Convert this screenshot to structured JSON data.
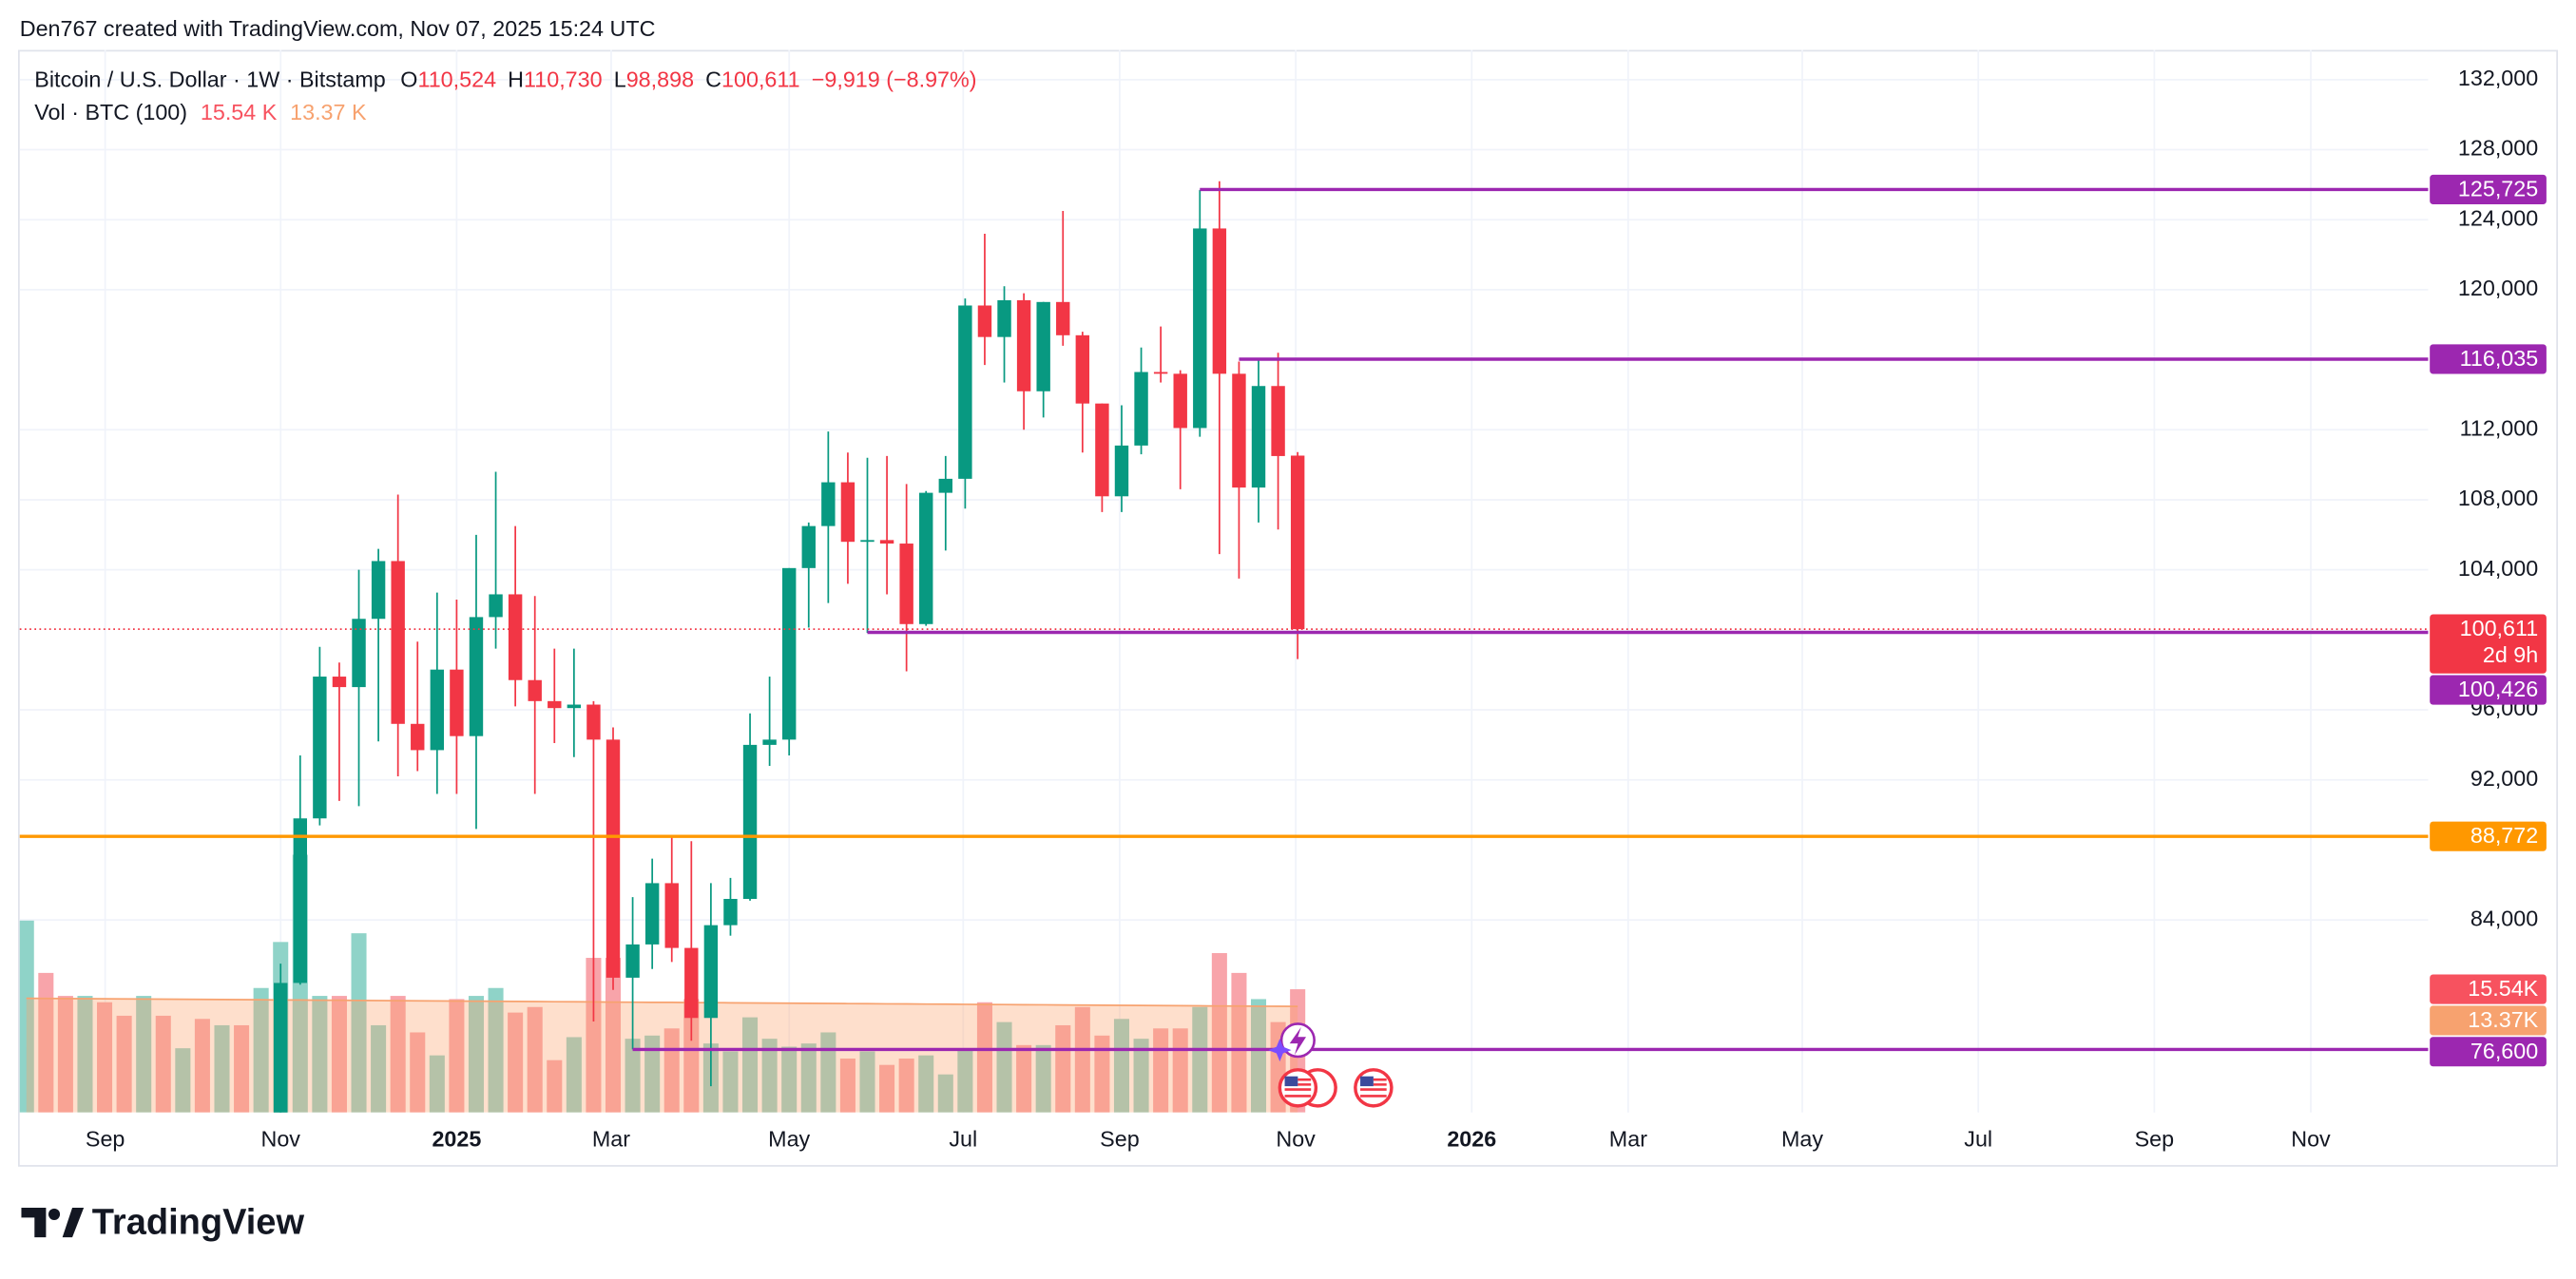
{
  "header": {
    "credit": "Den767 created with TradingView.com, Nov 07, 2025 15:24 UTC",
    "logo": "TradingView"
  },
  "legend": {
    "symbol": "Bitcoin / U.S. Dollar · 1W · Bitstamp",
    "ohlc": [
      {
        "key": "O",
        "value": "110,524"
      },
      {
        "key": "H",
        "value": "110,730"
      },
      {
        "key": "L",
        "value": "98,898"
      },
      {
        "key": "C",
        "value": "100,611"
      }
    ],
    "change": "−9,919 (−8.97%)",
    "volume": "Vol · BTC (100)",
    "volume_value": "15.54 K",
    "volume_ma_value": "13.37 K"
  },
  "chart_data": {
    "type": "candlestick",
    "up_color": "#089981",
    "down_color": "#f23645",
    "xlim": [
      -0.34,
      122.8
    ],
    "xticks": [
      {
        "value": 4.03,
        "label": "Sep"
      },
      {
        "value": 13.0,
        "label": "Nov"
      },
      {
        "value": 22.0,
        "label": "2025",
        "bold": true
      },
      {
        "value": 29.9,
        "label": "Mar"
      },
      {
        "value": 39.0,
        "label": "May"
      },
      {
        "value": 47.9,
        "label": "Jul"
      },
      {
        "value": 55.9,
        "label": "Sep"
      },
      {
        "value": 64.9,
        "label": "Nov"
      },
      {
        "value": 73.9,
        "label": "2026",
        "bold": true
      },
      {
        "value": 81.9,
        "label": "Mar"
      },
      {
        "value": 90.8,
        "label": "May"
      },
      {
        "value": 99.8,
        "label": "Jul"
      },
      {
        "value": 108.8,
        "label": "Sep"
      },
      {
        "value": 116.8,
        "label": "Nov"
      }
    ],
    "ylim": [
      73000,
      133700
    ],
    "yticks": [
      {
        "value": 84000,
        "label": "84,000"
      },
      {
        "value": 92000,
        "label": "92,000"
      },
      {
        "value": 96000,
        "label": "96,000"
      },
      {
        "value": 104000,
        "label": "104,000"
      },
      {
        "value": 108000,
        "label": "108,000"
      },
      {
        "value": 112000,
        "label": "112,000"
      },
      {
        "value": 120000,
        "label": "120,000"
      },
      {
        "value": 124000,
        "label": "124,000"
      },
      {
        "value": 128000,
        "label": "128,000"
      },
      {
        "value": 132000,
        "label": "132,000"
      }
    ],
    "grid": true,
    "open": [
      null,
      null,
      null,
      null,
      null,
      null,
      null,
      null,
      null,
      null,
      null,
      null,
      null,
      68700,
      80400,
      89800,
      97900,
      97300,
      101200,
      104500,
      95200,
      93700,
      98300,
      94500,
      101300,
      102600,
      97700,
      96500,
      96100,
      96300,
      94300,
      80700,
      82600,
      86100,
      82400,
      78400,
      83700,
      85200,
      94000,
      94300,
      104100,
      106500,
      109000,
      105600,
      105700,
      105500,
      100900,
      108400,
      109200,
      119100,
      117300,
      119400,
      114200,
      119300,
      117400,
      113500,
      108200,
      111100,
      115300,
      115200,
      112100,
      123500,
      115200,
      108700,
      114500,
      110524
    ],
    "high": [
      null,
      null,
      null,
      null,
      null,
      null,
      null,
      null,
      null,
      null,
      null,
      null,
      null,
      81500,
      93400,
      99600,
      98700,
      104000,
      105200,
      108300,
      99900,
      102700,
      102300,
      106000,
      109600,
      106500,
      102500,
      99500,
      99500,
      96500,
      95000,
      85300,
      87500,
      88800,
      88500,
      86100,
      86400,
      95800,
      97900,
      104100,
      106700,
      111900,
      110700,
      110400,
      110500,
      108900,
      108500,
      110500,
      119500,
      123200,
      120200,
      119800,
      119300,
      124500,
      117600,
      113500,
      113400,
      116700,
      117900,
      115400,
      125700,
      126200,
      115900,
      116000,
      116400,
      110730
    ],
    "low": [
      null,
      null,
      null,
      null,
      null,
      null,
      null,
      null,
      null,
      null,
      null,
      null,
      null,
      66800,
      80300,
      89400,
      90800,
      90500,
      94200,
      92200,
      92500,
      91200,
      91200,
      89200,
      99500,
      96200,
      91200,
      94100,
      93300,
      78200,
      80000,
      76600,
      81200,
      81600,
      77100,
      74500,
      83100,
      85100,
      92800,
      93400,
      100700,
      102100,
      103200,
      100400,
      102600,
      98200,
      100800,
      105100,
      107500,
      115700,
      114700,
      112000,
      112700,
      116800,
      110700,
      107300,
      107300,
      110600,
      114700,
      108600,
      111600,
      104900,
      103500,
      106700,
      106300,
      98898
    ],
    "close": [
      null,
      null,
      null,
      null,
      null,
      null,
      null,
      null,
      null,
      null,
      null,
      null,
      null,
      80400,
      89800,
      97900,
      97300,
      101200,
      104500,
      95200,
      93700,
      98300,
      94500,
      101300,
      102600,
      97700,
      96500,
      96100,
      96300,
      94300,
      80700,
      82600,
      86100,
      82400,
      78400,
      83700,
      85200,
      94000,
      94300,
      104100,
      106500,
      109000,
      105600,
      105700,
      105500,
      100900,
      108400,
      109200,
      119100,
      117300,
      119400,
      114200,
      119300,
      117400,
      113500,
      108200,
      111100,
      115300,
      115200,
      112100,
      123500,
      115200,
      108700,
      114500,
      110500,
      100611
    ],
    "y2lim": [
      0,
      134
    ],
    "volumes": [
      24.2,
      17.6,
      14.7,
      14.7,
      13.9,
      12.2,
      14.7,
      12.2,
      8.1,
      11.8,
      11.0,
      11.0,
      15.7,
      21.5,
      32.5,
      14.7,
      14.7,
      22.6,
      11.0,
      14.7,
      10.1,
      7.2,
      14.3,
      14.7,
      15.7,
      12.6,
      13.3,
      6.6,
      9.5,
      19.5,
      19.5,
      9.3,
      9.7,
      10.6,
      14.3,
      8.7,
      7.7,
      12.0,
      9.3,
      8.3,
      8.7,
      10.1,
      6.8,
      7.7,
      6.0,
      6.8,
      7.2,
      4.8,
      7.9,
      13.9,
      11.4,
      8.5,
      8.5,
      11.0,
      13.3,
      9.7,
      11.8,
      9.3,
      10.6,
      10.6,
      13.3,
      20.1,
      17.6,
      14.3,
      11.4,
      15.54
    ],
    "volume_colors": [
      "#8fd3c8",
      "#f8a4aa",
      "#f8a4aa",
      "#8fd3c8",
      "#f8a4aa",
      "#f8a4aa",
      "#8fd3c8",
      "#f8a4aa",
      "#8fd3c8",
      "#f8a4aa",
      "#8fd3c8",
      "#f8a4aa",
      "#8fd3c8",
      "#8fd3c8",
      "#8fd3c8",
      "#8fd3c8",
      "#f8a4aa",
      "#8fd3c8",
      "#8fd3c8",
      "#f8a4aa",
      "#f8a4aa",
      "#8fd3c8",
      "#f8a4aa",
      "#8fd3c8",
      "#8fd3c8",
      "#f8a4aa",
      "#f8a4aa",
      "#f8a4aa",
      "#8fd3c8",
      "#f8a4aa",
      "#f8a4aa",
      "#8fd3c8",
      "#8fd3c8",
      "#f8a4aa",
      "#f8a4aa",
      "#8fd3c8",
      "#8fd3c8",
      "#8fd3c8",
      "#8fd3c8",
      "#8fd3c8",
      "#8fd3c8",
      "#8fd3c8",
      "#f8a4aa",
      "#8fd3c8",
      "#f8a4aa",
      "#f8a4aa",
      "#8fd3c8",
      "#8fd3c8",
      "#8fd3c8",
      "#f8a4aa",
      "#8fd3c8",
      "#f8a4aa",
      "#8fd3c8",
      "#f8a4aa",
      "#f8a4aa",
      "#f8a4aa",
      "#8fd3c8",
      "#8fd3c8",
      "#f8a4aa",
      "#f8a4aa",
      "#8fd3c8",
      "#f8a4aa",
      "#f8a4aa",
      "#8fd3c8",
      "#f8a4aa",
      "#f8a4aa"
    ],
    "volume_label": "15.54K",
    "volume_label_color": "#f7525f",
    "volume_ma": [
      14.4,
      14.38,
      14.37,
      14.35,
      14.34,
      14.32,
      14.3,
      14.29,
      14.27,
      14.26,
      14.24,
      14.23,
      14.21,
      14.19,
      14.18,
      14.16,
      14.15,
      14.13,
      14.11,
      14.1,
      14.08,
      14.07,
      14.05,
      14.04,
      14.02,
      14.0,
      13.99,
      13.97,
      13.96,
      13.94,
      13.92,
      13.91,
      13.89,
      13.88,
      13.86,
      13.85,
      13.83,
      13.81,
      13.8,
      13.78,
      13.77,
      13.75,
      13.73,
      13.72,
      13.7,
      13.69,
      13.67,
      13.66,
      13.64,
      13.62,
      13.61,
      13.59,
      13.58,
      13.56,
      13.54,
      13.53,
      13.51,
      13.5,
      13.48,
      13.47,
      13.45,
      13.43,
      13.42,
      13.4,
      13.39,
      13.37
    ],
    "volume_ma_label": "13.37K",
    "volume_ma_color": "#f7a26f",
    "volume_ma_fill": "rgba(252,163,110,0.35)",
    "last_price": {
      "value": 100611,
      "label": "100,611",
      "countdown": "2d 9h",
      "color": "#f23645"
    },
    "hlines": [
      {
        "value": 125725,
        "label": "125,725",
        "start": 60,
        "color": "#9c27b0"
      },
      {
        "value": 116035,
        "label": "116,035",
        "start": 62,
        "color": "#9c27b0"
      },
      {
        "value": 100426,
        "label": "100,426",
        "start": 43,
        "color": "#9c27b0"
      },
      {
        "value": 88772,
        "label": "88,772",
        "color": "#ff9800"
      },
      {
        "value": 76600,
        "label": "76,600",
        "start": 31,
        "color": "#9c27b0"
      }
    ]
  }
}
